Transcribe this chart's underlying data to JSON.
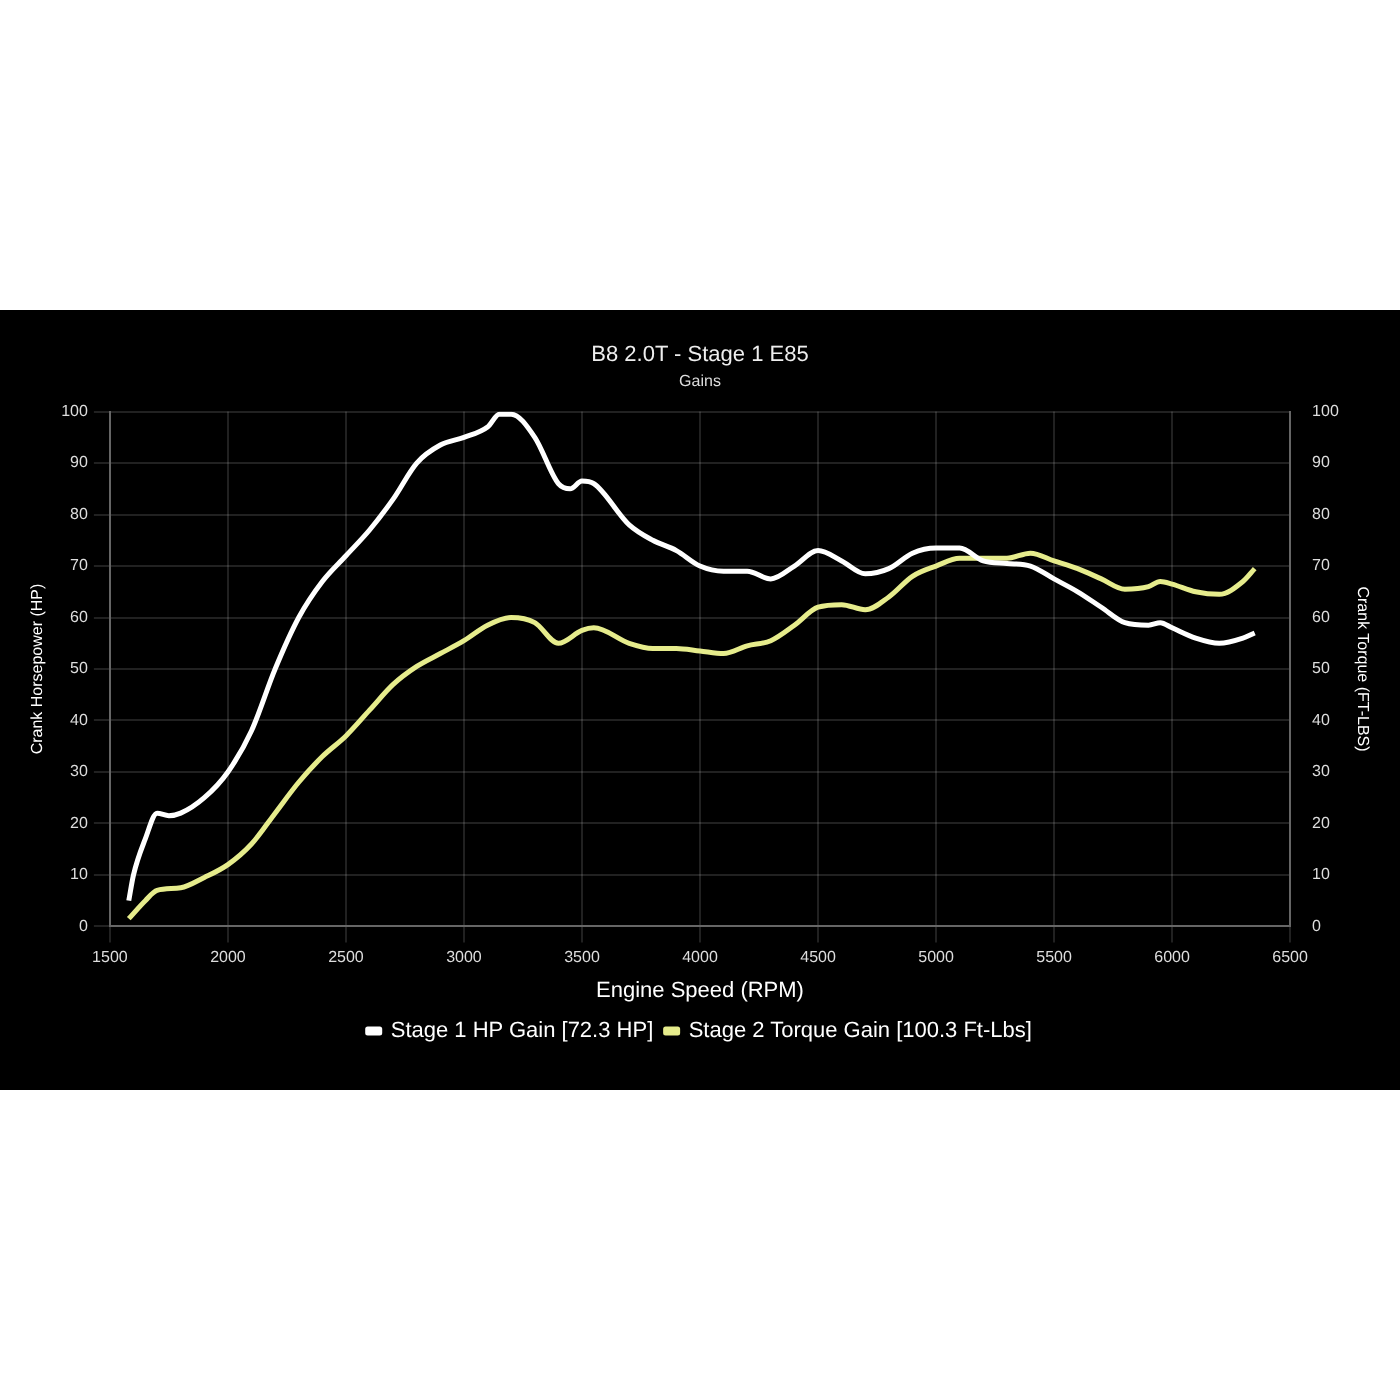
{
  "chart_data": {
    "type": "line",
    "title": "B8 2.0T - Stage 1 E85",
    "subtitle": "Gains",
    "xlabel": "Engine Speed (RPM)",
    "ylabel": "Crank Horsepower (HP)",
    "y2label": "Crank Torque (FT-LBS)",
    "xlim": [
      1500,
      6500
    ],
    "xticks": [
      1500,
      2000,
      2500,
      3000,
      3500,
      4000,
      4500,
      5000,
      5500,
      6000,
      6500
    ],
    "ylim": [
      0,
      100
    ],
    "yticks": [
      0,
      10,
      20,
      30,
      40,
      50,
      60,
      70,
      80,
      90,
      100
    ],
    "y2lim": [
      0,
      100
    ],
    "y2ticks": [
      0,
      10,
      20,
      30,
      40,
      50,
      60,
      70,
      80,
      90,
      100
    ],
    "grid": true,
    "legend": "bottom",
    "marker": "none",
    "line_style": "solid",
    "series": [
      {
        "name": "Stage 1 HP Gain [72.3 HP]",
        "color": "#ffffff",
        "x": [
          1580,
          1600,
          1650,
          1700,
          1750,
          1800,
          1900,
          2000,
          2100,
          2200,
          2300,
          2400,
          2500,
          2600,
          2700,
          2800,
          2900,
          3000,
          3100,
          3150,
          3200,
          3300,
          3400,
          3450,
          3500,
          3550,
          3700,
          3800,
          3900,
          4000,
          4100,
          4200,
          4300,
          4400,
          4500,
          4600,
          4700,
          4800,
          4900,
          5000,
          5100,
          5200,
          5300,
          5400,
          5500,
          5600,
          5700,
          5800,
          5900,
          5950,
          6000,
          6100,
          6200,
          6300,
          6350
        ],
        "values": [
          5,
          10,
          17,
          22,
          21.5,
          22,
          25,
          30,
          38,
          50,
          60,
          67,
          72,
          77,
          83,
          90,
          93.5,
          95,
          97,
          99.5,
          99.5,
          95,
          86,
          85,
          86.5,
          86,
          78,
          75,
          73,
          70,
          69,
          69,
          67.5,
          70,
          73,
          71,
          68.5,
          69.5,
          72.5,
          73.5,
          73.5,
          71,
          70.5,
          70,
          67.5,
          65,
          62,
          59,
          58.5,
          59,
          58,
          56,
          55,
          56,
          57
        ]
      },
      {
        "name": "Stage 2 Torque Gain [100.3 Ft-Lbs]",
        "color": "#e6ec8c",
        "axis": "y2",
        "x": [
          1580,
          1650,
          1700,
          1800,
          1900,
          2000,
          2100,
          2200,
          2300,
          2400,
          2500,
          2600,
          2700,
          2800,
          2900,
          3000,
          3100,
          3200,
          3300,
          3400,
          3500,
          3550,
          3700,
          3800,
          3900,
          4000,
          4100,
          4200,
          4300,
          4400,
          4500,
          4600,
          4700,
          4800,
          4900,
          5000,
          5100,
          5200,
          5300,
          5400,
          5500,
          5600,
          5700,
          5800,
          5900,
          5950,
          6000,
          6100,
          6200,
          6300,
          6350
        ],
        "values": [
          1.5,
          5,
          7,
          7.5,
          9.5,
          12,
          16,
          22,
          28,
          33,
          37,
          42,
          47,
          50.5,
          53,
          55.5,
          58.5,
          60,
          59,
          55,
          57.5,
          58,
          55,
          54,
          54,
          53.5,
          53,
          54.5,
          55.5,
          58.5,
          62,
          62.5,
          61.5,
          64,
          68,
          70,
          71.5,
          71.5,
          71.5,
          72.5,
          71,
          69.5,
          67.5,
          65.5,
          66,
          67,
          66.5,
          65,
          64.5,
          67,
          69.5
        ]
      }
    ]
  }
}
